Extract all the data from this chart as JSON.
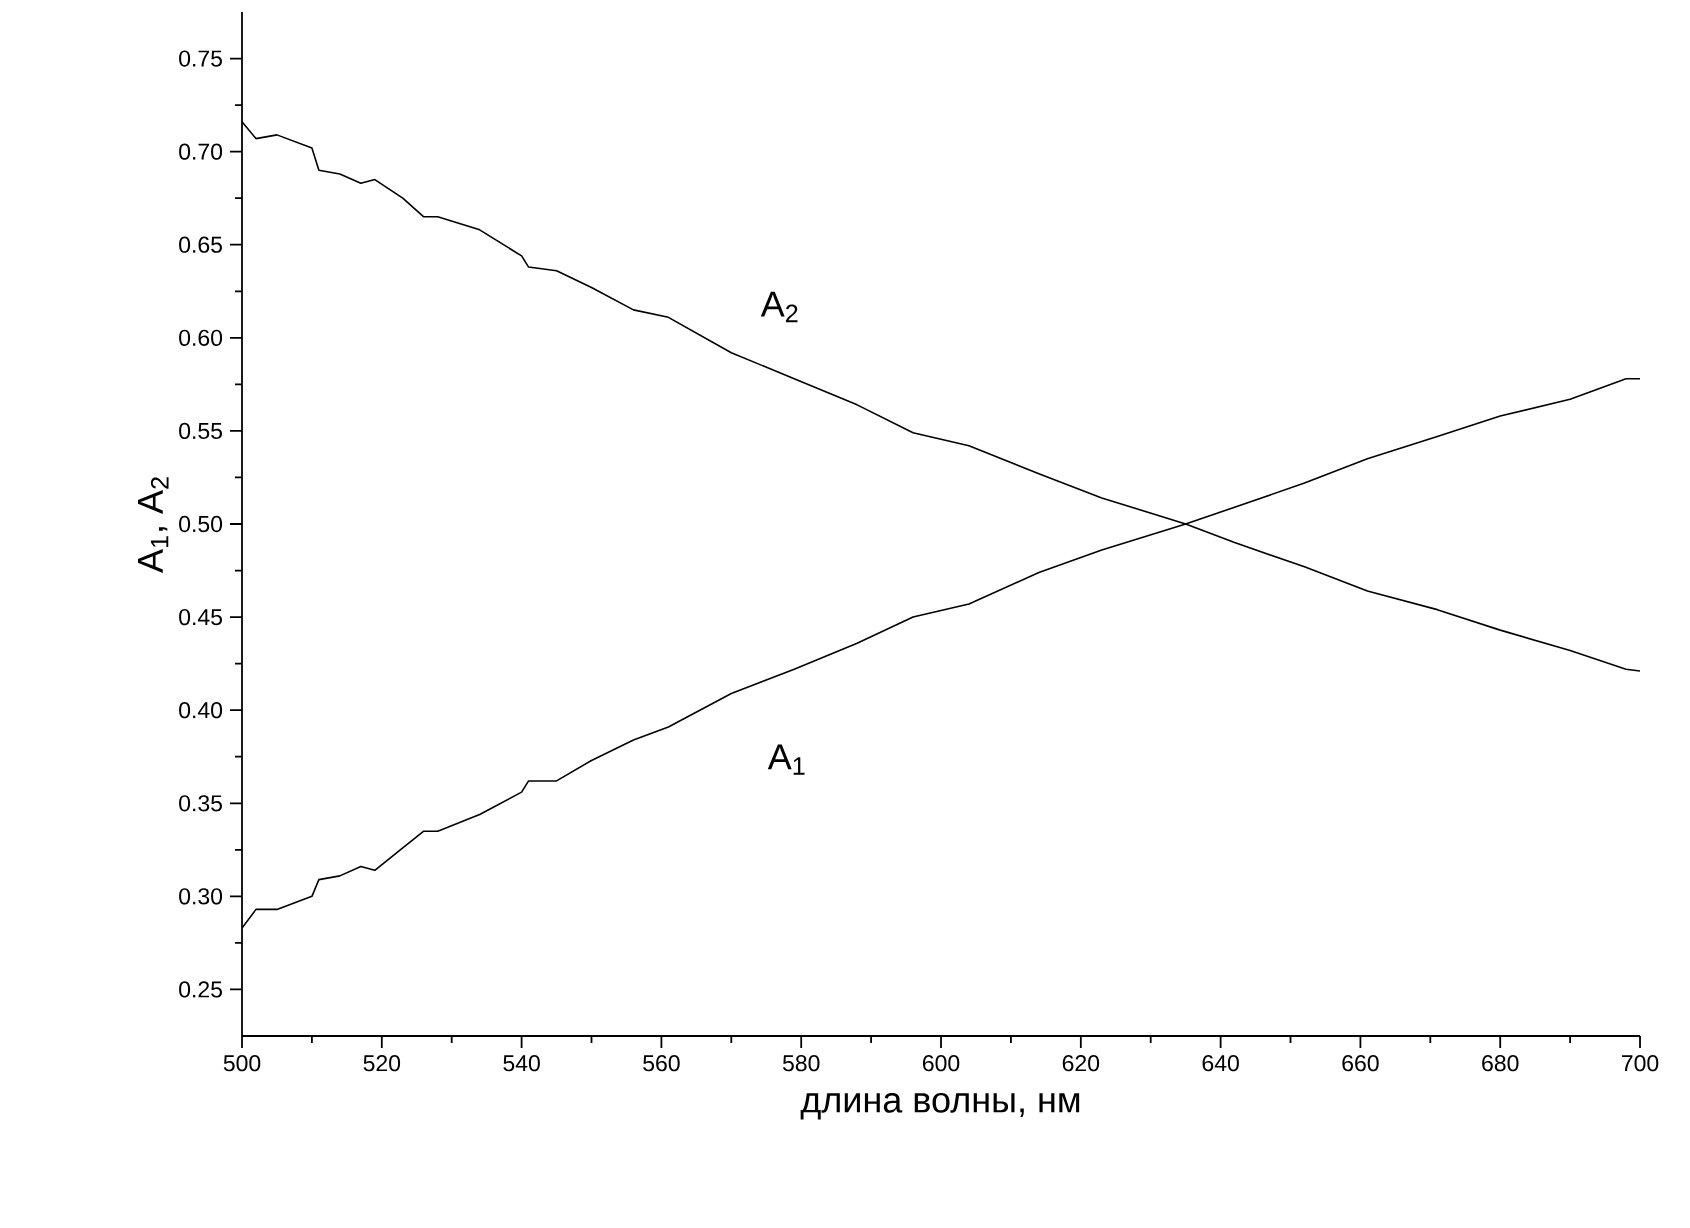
{
  "chart_data": {
    "type": "line",
    "xlabel": "длина волны, нм",
    "ylabel": "A$_{1}$, A$_{2}$",
    "xlim": [
      500,
      700
    ],
    "ylim": [
      0.225,
      0.775
    ],
    "xticks": [
      500,
      520,
      540,
      560,
      580,
      600,
      620,
      640,
      660,
      680,
      700
    ],
    "yticks": [
      {
        "value": 0.25,
        "label": "0.25"
      },
      {
        "value": 0.3,
        "label": "0.30"
      },
      {
        "value": 0.35,
        "label": "0.35"
      },
      {
        "value": 0.4,
        "label": "0.40"
      },
      {
        "value": 0.45,
        "label": "0.45"
      },
      {
        "value": 0.5,
        "label": "0.50"
      },
      {
        "value": 0.55,
        "label": "0.55"
      },
      {
        "value": 0.6,
        "label": "0.60"
      },
      {
        "value": 0.65,
        "label": "0.65"
      },
      {
        "value": 0.7,
        "label": "0.70"
      },
      {
        "value": 0.75,
        "label": "0.75"
      }
    ],
    "grid": false,
    "marker": "none",
    "line_style": "solid",
    "series": [
      {
        "color": "#000000",
        "x": [
          500,
          502,
          505,
          510,
          511,
          514,
          517,
          519,
          523,
          526,
          528,
          534,
          540,
          541,
          545,
          550,
          556,
          561,
          570,
          579,
          588,
          596,
          604,
          614,
          623,
          635,
          642,
          652,
          661,
          671,
          680,
          690,
          698,
          700
        ],
        "values": [
          0.283,
          0.293,
          0.293,
          0.3,
          0.309,
          0.311,
          0.316,
          0.314,
          0.326,
          0.335,
          0.335,
          0.344,
          0.356,
          0.362,
          0.362,
          0.373,
          0.384,
          0.391,
          0.409,
          0.422,
          0.436,
          0.45,
          0.457,
          0.474,
          0.486,
          0.5,
          0.509,
          0.522,
          0.535,
          0.547,
          0.558,
          0.567,
          0.578,
          0.578
        ]
      },
      {
        "color": "#000000",
        "x": [
          500,
          502,
          505,
          510,
          511,
          514,
          517,
          519,
          523,
          526,
          528,
          534,
          540,
          541,
          545,
          550,
          556,
          561,
          570,
          579,
          588,
          596,
          604,
          614,
          623,
          635,
          642,
          652,
          661,
          671,
          680,
          690,
          698,
          700
        ],
        "values": [
          0.716,
          0.707,
          0.709,
          0.702,
          0.69,
          0.688,
          0.683,
          0.685,
          0.675,
          0.665,
          0.665,
          0.658,
          0.644,
          0.638,
          0.636,
          0.627,
          0.615,
          0.611,
          0.592,
          0.578,
          0.564,
          0.549,
          0.542,
          0.527,
          0.514,
          0.5,
          0.49,
          0.477,
          0.464,
          0.454,
          0.443,
          0.432,
          0.422,
          0.421
        ]
      }
    ],
    "annotations": [
      "A$_{2}$",
      "A$_{1}$"
    ]
  }
}
